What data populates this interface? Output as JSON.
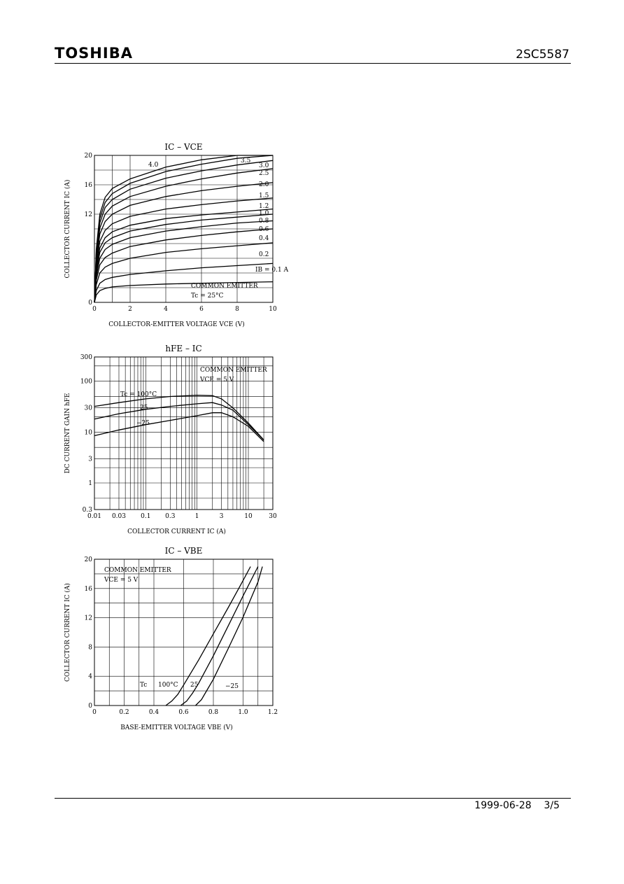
{
  "header": {
    "brand": "TOSHIBA",
    "part_number": "2SC5587"
  },
  "footer": {
    "date": "1999-06-28",
    "page": "3/5"
  },
  "charts": [
    {
      "title": "IC – VCE",
      "xlabel": "COLLECTOR-EMITTER VOLTAGE  VCE  (V)",
      "ylabel": "COLLECTOR CURRENT  IC  (A)",
      "x_ticks": [
        "0",
        "2",
        "4",
        "6",
        "8",
        "10"
      ],
      "y_ticks": [
        "0",
        "12",
        "16",
        "20"
      ],
      "legend": [
        "COMMON EMITTER",
        "Tc = 25°C"
      ],
      "curve_labels": [
        "4.0",
        "3.5",
        "3.0",
        "2.5",
        "2.0",
        "1.5",
        "1.2",
        "1.0",
        "0.8",
        "0.6",
        "0.4",
        "0.2",
        "IB = 0.1 A"
      ]
    },
    {
      "title": "hFE – IC",
      "xlabel": "COLLECTOR CURRENT  IC  (A)",
      "ylabel": "DC CURRENT GAIN  hFE",
      "x_ticks": [
        "0.01",
        "0.03",
        "0.1",
        "0.3",
        "1",
        "3",
        "10",
        "30"
      ],
      "y_ticks": [
        "0.3",
        "1",
        "3",
        "10",
        "30",
        "100",
        "300"
      ],
      "legend": [
        "COMMON EMITTER",
        "VCE = 5 V"
      ],
      "curve_labels": [
        "Tc = 100°C",
        "25",
        "−25"
      ]
    },
    {
      "title": "IC – VBE",
      "xlabel": "BASE-EMITTER VOLTAGE  VBE  (V)",
      "ylabel": "COLLECTOR CURRENT  IC  (A)",
      "x_ticks": [
        "0",
        "0.2",
        "0.4",
        "0.6",
        "0.8",
        "1.0",
        "1.2"
      ],
      "y_ticks": [
        "0",
        "4",
        "8",
        "12",
        "16",
        "20"
      ],
      "legend": [
        "COMMON EMITTER",
        "VCE = 5 V"
      ],
      "curve_labels": [
        "Tc",
        "100°C",
        "25",
        "−25"
      ]
    }
  ],
  "chart_data": [
    {
      "type": "line",
      "title": "IC – VCE",
      "xlabel": "COLLECTOR-EMITTER VOLTAGE  VCE  (V)",
      "ylabel": "COLLECTOR CURRENT  IC  (A)",
      "xlim": [
        0,
        10
      ],
      "ylim": [
        0,
        20
      ],
      "series": [
        {
          "name": "IB = 0.1 A",
          "x": [
            0,
            0.1,
            0.3,
            0.6,
            1,
            2,
            4,
            6,
            8,
            10
          ],
          "y": [
            0,
            1.0,
            1.6,
            1.9,
            2.1,
            2.3,
            2.5,
            2.6,
            2.7,
            2.8
          ]
        },
        {
          "name": "0.2",
          "x": [
            0,
            0.1,
            0.3,
            0.6,
            1,
            2,
            4,
            6,
            8,
            10
          ],
          "y": [
            0,
            1.6,
            2.6,
            3.1,
            3.4,
            3.8,
            4.3,
            4.7,
            5.0,
            5.3
          ]
        },
        {
          "name": "0.4",
          "x": [
            0,
            0.1,
            0.3,
            0.6,
            1,
            2,
            4,
            6,
            8,
            10
          ],
          "y": [
            0,
            2.4,
            4.0,
            4.8,
            5.3,
            6.0,
            6.8,
            7.3,
            7.7,
            8.1
          ]
        },
        {
          "name": "0.6",
          "x": [
            0,
            0.1,
            0.3,
            0.6,
            1,
            2,
            4,
            6,
            8,
            10
          ],
          "y": [
            0,
            3.0,
            5.1,
            6.1,
            6.7,
            7.6,
            8.5,
            9.1,
            9.6,
            10.0
          ]
        },
        {
          "name": "0.8",
          "x": [
            0,
            0.1,
            0.3,
            0.6,
            1,
            2,
            4,
            6,
            8,
            10
          ],
          "y": [
            0,
            3.5,
            6.0,
            7.2,
            7.9,
            8.8,
            9.7,
            10.3,
            10.8,
            11.1
          ]
        },
        {
          "name": "1.0",
          "x": [
            0,
            0.1,
            0.3,
            0.6,
            1,
            2,
            4,
            6,
            8,
            10
          ],
          "y": [
            0,
            4.0,
            6.8,
            8.1,
            8.8,
            9.7,
            10.6,
            11.2,
            11.6,
            12.0
          ]
        },
        {
          "name": "1.2",
          "x": [
            0,
            0.1,
            0.3,
            0.6,
            1,
            2,
            4,
            6,
            8,
            10
          ],
          "y": [
            0,
            4.4,
            7.4,
            8.8,
            9.6,
            10.5,
            11.4,
            11.9,
            12.3,
            12.7
          ]
        },
        {
          "name": "1.5",
          "x": [
            0,
            0.1,
            0.3,
            0.6,
            1,
            2,
            4,
            6,
            8,
            10
          ],
          "y": [
            0,
            4.9,
            8.3,
            9.8,
            10.7,
            11.7,
            12.7,
            13.3,
            13.8,
            14.2
          ]
        },
        {
          "name": "2.0",
          "x": [
            0,
            0.1,
            0.3,
            0.6,
            1,
            2,
            4,
            6,
            8,
            10
          ],
          "y": [
            0,
            5.5,
            9.3,
            11.0,
            12.0,
            13.2,
            14.4,
            15.2,
            15.8,
            16.3
          ]
        },
        {
          "name": "2.5",
          "x": [
            0,
            0.1,
            0.3,
            0.6,
            1,
            2,
            4,
            6,
            8,
            10
          ],
          "y": [
            0,
            6.0,
            10.1,
            12.0,
            13.1,
            14.4,
            15.8,
            16.8,
            17.6,
            18.2
          ]
        },
        {
          "name": "3.0",
          "x": [
            0,
            0.1,
            0.3,
            0.6,
            1,
            2,
            4,
            6,
            8,
            10
          ],
          "y": [
            0,
            6.4,
            10.8,
            12.9,
            14.0,
            15.4,
            16.9,
            17.9,
            18.7,
            19.3
          ]
        },
        {
          "name": "3.5",
          "x": [
            0,
            0.1,
            0.3,
            0.6,
            1,
            2,
            4,
            6,
            8,
            10
          ],
          "y": [
            0,
            6.8,
            11.4,
            13.6,
            14.8,
            16.2,
            17.8,
            18.8,
            19.6,
            20.0
          ]
        },
        {
          "name": "4.0",
          "x": [
            0,
            0.1,
            0.3,
            0.6,
            1,
            2,
            4,
            6,
            8,
            10
          ],
          "y": [
            0,
            7.2,
            12.0,
            14.3,
            15.5,
            16.8,
            18.4,
            19.4,
            20.0,
            20.0
          ]
        }
      ]
    },
    {
      "type": "line",
      "title": "hFE – IC",
      "xlabel": "COLLECTOR CURRENT  IC  (A)",
      "ylabel": "DC CURRENT GAIN  hFE",
      "xscale": "log",
      "yscale": "log",
      "xlim": [
        0.01,
        30
      ],
      "ylim": [
        0.3,
        300
      ],
      "series": [
        {
          "name": "Tc = 100°C",
          "x": [
            0.01,
            0.03,
            0.1,
            0.3,
            1,
            2,
            3,
            5,
            10,
            20
          ],
          "y": [
            32,
            38,
            45,
            50,
            53,
            52,
            45,
            30,
            15,
            7
          ]
        },
        {
          "name": "25",
          "x": [
            0.01,
            0.03,
            0.1,
            0.3,
            1,
            2,
            3,
            5,
            10,
            20
          ],
          "y": [
            18,
            23,
            28,
            32,
            36,
            38,
            34,
            27,
            14,
            7
          ]
        },
        {
          "name": "−25",
          "x": [
            0.01,
            0.03,
            0.1,
            0.3,
            1,
            2,
            3,
            5,
            10,
            20
          ],
          "y": [
            8.5,
            11,
            14,
            17,
            21,
            24,
            24,
            20,
            13,
            6.5
          ]
        }
      ]
    },
    {
      "type": "line",
      "title": "IC – VBE",
      "xlabel": "BASE-EMITTER VOLTAGE  VBE  (V)",
      "ylabel": "COLLECTOR CURRENT  IC  (A)",
      "xlim": [
        0,
        1.2
      ],
      "ylim": [
        0,
        20
      ],
      "series": [
        {
          "name": "100°C",
          "x": [
            0.48,
            0.52,
            0.56,
            0.6,
            0.7,
            0.8,
            0.9,
            1.0,
            1.05
          ],
          "y": [
            0,
            0.6,
            1.5,
            2.8,
            6.2,
            9.8,
            13.4,
            17.1,
            19.0
          ]
        },
        {
          "name": "25",
          "x": [
            0.58,
            0.62,
            0.66,
            0.7,
            0.8,
            0.9,
            1.0,
            1.1
          ],
          "y": [
            0,
            0.6,
            1.7,
            3.0,
            6.8,
            10.9,
            15.0,
            19.0
          ]
        },
        {
          "name": "−25",
          "x": [
            0.68,
            0.72,
            0.76,
            0.8,
            0.9,
            1.0,
            1.1,
            1.13
          ],
          "y": [
            0,
            0.8,
            2.2,
            3.6,
            7.8,
            12.1,
            16.9,
            19.0
          ]
        }
      ]
    }
  ]
}
